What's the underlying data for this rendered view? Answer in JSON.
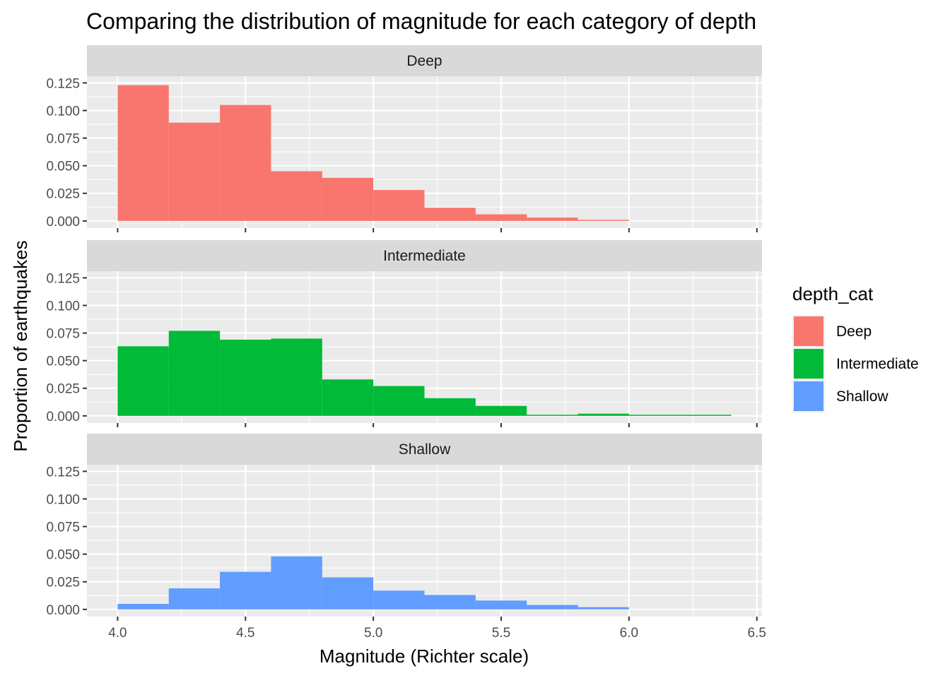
{
  "chart_data": {
    "type": "bar",
    "subtype": "faceted-histogram",
    "title": "Comparing the distribution of magnitude for each category of depth",
    "xlabel": "Magnitude (Richter scale)",
    "ylabel": "Proportion of earthquakes",
    "xlim": [
      3.88,
      6.52
    ],
    "ylim": [
      -0.0065,
      0.131
    ],
    "x_ticks": [
      "4.0",
      "4.5",
      "5.0",
      "5.5",
      "6.0",
      "6.5"
    ],
    "x_tick_values": [
      4.0,
      4.5,
      5.0,
      5.5,
      6.0,
      6.5
    ],
    "y_ticks": [
      "0.000",
      "0.025",
      "0.050",
      "0.075",
      "0.100",
      "0.125"
    ],
    "y_tick_values": [
      0,
      0.025,
      0.05,
      0.075,
      0.1,
      0.125
    ],
    "bin_edges": [
      4.0,
      4.2,
      4.4,
      4.6,
      4.8,
      5.0,
      5.2,
      5.4,
      5.6,
      5.8,
      6.0,
      6.2,
      6.4
    ],
    "grid": true,
    "legend": {
      "title": "depth_cat",
      "position": "right",
      "items": [
        {
          "label": "Deep",
          "color": "#F8766D"
        },
        {
          "label": "Intermediate",
          "color": "#00BA38"
        },
        {
          "label": "Shallow",
          "color": "#619CFF"
        }
      ]
    },
    "panels": [
      {
        "name": "Deep",
        "color": "#F8766D",
        "values": [
          0.123,
          0.089,
          0.105,
          0.045,
          0.039,
          0.028,
          0.012,
          0.006,
          0.003,
          0.001,
          0,
          0
        ]
      },
      {
        "name": "Intermediate",
        "color": "#00BA38",
        "values": [
          0.063,
          0.077,
          0.069,
          0.07,
          0.033,
          0.027,
          0.016,
          0.009,
          0.001,
          0.002,
          0.001,
          0.001
        ]
      },
      {
        "name": "Shallow",
        "color": "#619CFF",
        "values": [
          0.005,
          0.019,
          0.034,
          0.048,
          0.029,
          0.017,
          0.013,
          0.008,
          0.004,
          0.002,
          0,
          0
        ]
      }
    ]
  }
}
